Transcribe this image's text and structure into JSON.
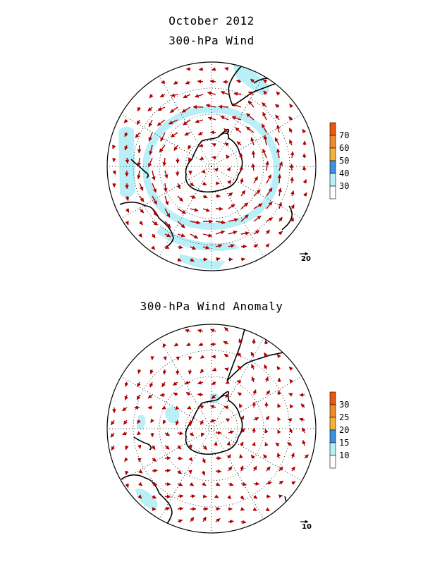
{
  "title": "October 2012",
  "panels": [
    {
      "id": "wind",
      "title": "300-hPa Wind",
      "legend": {
        "levels": [
          "30",
          "40",
          "50",
          "60",
          "70"
        ],
        "colors": [
          "#ffffff",
          "#b9f0f8",
          "#3f8fe0",
          "#f4b23a",
          "#f08a28",
          "#e8590f"
        ]
      },
      "reference_vector_label": "20",
      "shaded_regions": "wind speed ≥ 30 m/s",
      "arrow_color": "#b00000"
    },
    {
      "id": "anomaly",
      "title": "300-hPa Wind Anomaly",
      "legend": {
        "levels": [
          "10",
          "15",
          "20",
          "25",
          "30"
        ],
        "colors": [
          "#ffffff",
          "#b9f0f8",
          "#3f8fe0",
          "#f4b23a",
          "#f08a28",
          "#e8590f"
        ]
      },
      "reference_vector_label": "10",
      "shaded_regions": "anomaly ≥ 10 m/s",
      "arrow_color": "#b00000"
    }
  ]
}
